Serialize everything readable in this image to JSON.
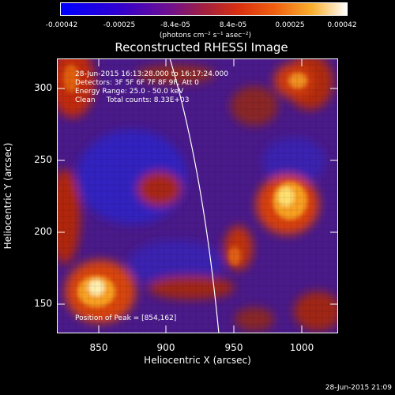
{
  "colorbar": {
    "ticks": [
      "-0.00042",
      "-0.00025",
      "-8.4e-05",
      "8.4e-05",
      "0.00025",
      "0.00042"
    ],
    "units": "(photons cm⁻² s⁻¹ asec⁻²)",
    "colormap": [
      "#0000ff",
      "#1a10e0",
      "#5010b0",
      "#902080",
      "#c03020",
      "#e85010",
      "#f8a020",
      "#fff0a0",
      "#ffffff"
    ]
  },
  "title": "Reconstructed RHESSI Image",
  "info": {
    "time_range": "28-Jun-2015 16:13:28.000 to 16:17:24.000",
    "detectors": "Detectors: 3F 5F 6F 7F 8F 9F, Att 0",
    "energy": "Energy Range: 25.0 - 50.0 keV",
    "method": "Clean     Total counts: 8.33E+03"
  },
  "peak": "Position of Peak = [854,162]",
  "axes": {
    "x_label": "Heliocentric X (arcsec)",
    "y_label": "Heliocentric Y (arcsec)",
    "x_ticks": [
      "850",
      "900",
      "950",
      "1000"
    ],
    "y_ticks": [
      "300",
      "250",
      "200",
      "150"
    ],
    "x_range": [
      822,
      1015
    ],
    "y_range": [
      128,
      320
    ]
  },
  "datestamp": "28-Jun-2015 21:09"
}
